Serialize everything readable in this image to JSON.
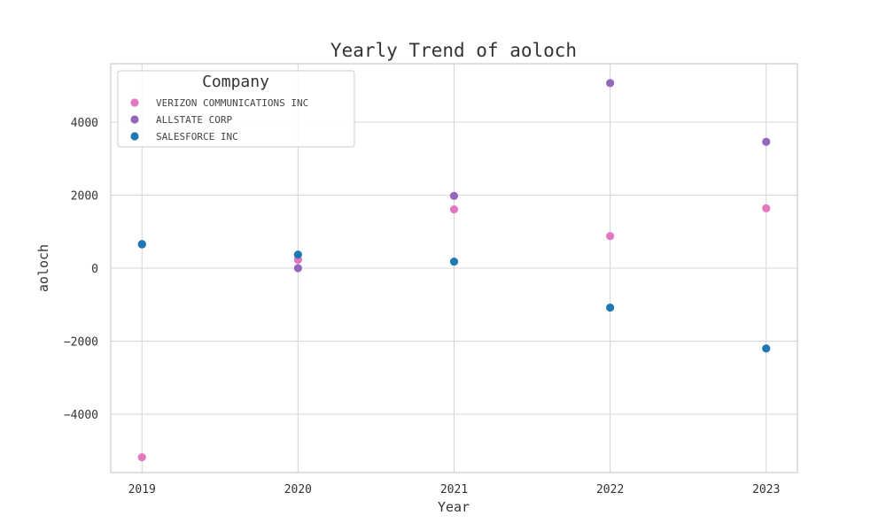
{
  "chart_data": {
    "type": "scatter",
    "title": "Yearly Trend of aoloch",
    "xlabel": "Year",
    "ylabel": "aoloch",
    "x": [
      2019,
      2020,
      2021,
      2022,
      2023
    ],
    "xticks": [
      "2019",
      "2020",
      "2021",
      "2022",
      "2023"
    ],
    "xlim": [
      2018.8,
      2023.2
    ],
    "ylim": [
      -5600,
      5600
    ],
    "yticks": [
      -4000,
      -2000,
      0,
      2000,
      4000
    ],
    "ytick_labels": [
      "−4000",
      "−2000",
      "0",
      "2000",
      "4000"
    ],
    "grid": true,
    "legend": {
      "title": "Company",
      "position": "top-left"
    },
    "series": [
      {
        "name": "VERIZON COMMUNICATIONS INC",
        "color": "#e377c2",
        "values": [
          -5180,
          230,
          1610,
          880,
          1640
        ]
      },
      {
        "name": "ALLSTATE CORP",
        "color": "#9467bd",
        "values": [
          650,
          0,
          1980,
          5070,
          3460
        ]
      },
      {
        "name": "SALESFORCE INC",
        "color": "#1f77b4",
        "values": [
          660,
          370,
          180,
          -1080,
          -2200
        ]
      }
    ]
  }
}
